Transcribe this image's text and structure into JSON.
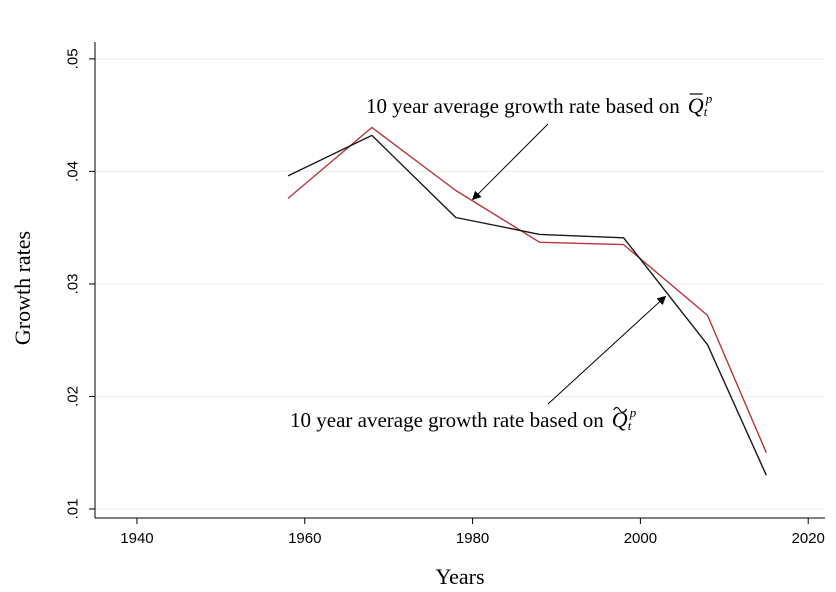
{
  "chart_data": {
    "type": "line",
    "xlabel": "Years",
    "ylabel": "Growth rates",
    "xlim": [
      1935,
      2022
    ],
    "ylim": [
      0.0092,
      0.0515
    ],
    "x_ticks": [
      1940,
      1960,
      1980,
      2000,
      2020
    ],
    "x_tick_labels": [
      "1940",
      "1960",
      "1980",
      "2000",
      "2020"
    ],
    "y_ticks": [
      0.01,
      0.02,
      0.03,
      0.04,
      0.05
    ],
    "y_tick_labels": [
      ".01",
      ".02",
      ".03",
      ".04",
      ".05"
    ],
    "grid": "horizontal",
    "legend": "none",
    "series": [
      {
        "color": "#b5343c",
        "x": [
          1958,
          1968,
          1978,
          1988,
          1998,
          2008,
          2015
        ],
        "y": [
          0.0376,
          0.0439,
          0.0383,
          0.0337,
          0.0335,
          0.0272,
          0.015
        ]
      },
      {
        "color": "#1a1a1a",
        "x": [
          1958,
          1968,
          1978,
          1988,
          1998,
          2008,
          2015
        ],
        "y": [
          0.0396,
          0.0432,
          0.0359,
          0.0344,
          0.0341,
          0.0246,
          0.013
        ]
      }
    ],
    "annotations": [
      {
        "text": "10 year average growth rate based on",
        "math_base": "Q",
        "math_accent": "bar",
        "math_sub": "t",
        "math_sup": "p",
        "arrow_to": [
          1980,
          0.0375
        ]
      },
      {
        "text": "10 year average growth rate based on",
        "math_base": "Q",
        "math_accent": "tilde",
        "math_sub": "t",
        "math_sup": "p",
        "arrow_to": [
          2003,
          0.0289
        ]
      }
    ]
  }
}
